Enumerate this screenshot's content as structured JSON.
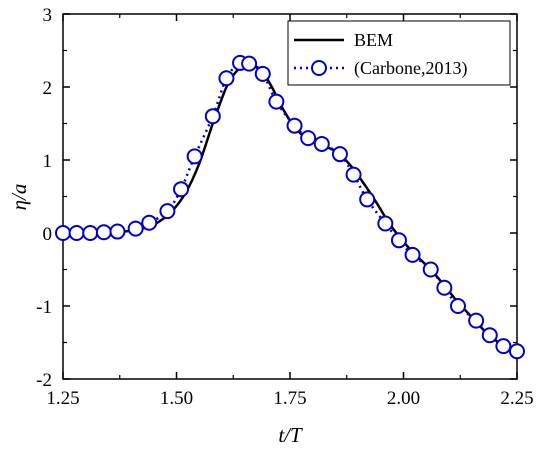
{
  "chart_data": {
    "type": "line",
    "xlabel": "t/T",
    "ylabel": "η/a",
    "xlim": [
      1.25,
      2.25
    ],
    "ylim": [
      -2,
      3
    ],
    "x_ticks": [
      "1.25",
      "1.50",
      "1.75",
      "2.00",
      "2.25"
    ],
    "y_ticks": [
      "-2",
      "-1",
      "0",
      "1",
      "2",
      "3"
    ],
    "grid": false,
    "legend_position": "top-right",
    "colors": {
      "bem": "#000000",
      "carbone": "#0000cc"
    },
    "series": [
      {
        "name": "BEM",
        "style": "solid-line",
        "x": [
          1.25,
          1.3,
          1.35,
          1.4,
          1.43,
          1.46,
          1.49,
          1.52,
          1.55,
          1.58,
          1.61,
          1.63,
          1.65,
          1.67,
          1.69,
          1.71,
          1.73,
          1.76,
          1.79,
          1.82,
          1.85,
          1.88,
          1.91,
          1.94,
          1.97,
          2.0,
          2.03,
          2.06,
          2.09,
          2.12,
          2.15,
          2.18,
          2.21,
          2.25
        ],
        "y": [
          0.0,
          0.0,
          0.01,
          0.03,
          0.07,
          0.15,
          0.3,
          0.55,
          0.95,
          1.5,
          2.0,
          2.2,
          2.3,
          2.3,
          2.2,
          2.0,
          1.75,
          1.45,
          1.28,
          1.2,
          1.12,
          0.95,
          0.7,
          0.42,
          0.12,
          -0.12,
          -0.32,
          -0.5,
          -0.72,
          -0.95,
          -1.15,
          -1.35,
          -1.5,
          -1.6
        ]
      },
      {
        "name": "(Carbone,2013)",
        "style": "dotted-line-circle-markers",
        "x": [
          1.25,
          1.28,
          1.31,
          1.34,
          1.37,
          1.41,
          1.44,
          1.48,
          1.51,
          1.54,
          1.58,
          1.61,
          1.64,
          1.66,
          1.69,
          1.72,
          1.76,
          1.79,
          1.82,
          1.86,
          1.89,
          1.92,
          1.96,
          1.99,
          2.02,
          2.06,
          2.09,
          2.12,
          2.16,
          2.19,
          2.22,
          2.25
        ],
        "y": [
          0.0,
          0.0,
          0.0,
          0.01,
          0.02,
          0.06,
          0.14,
          0.3,
          0.6,
          1.05,
          1.6,
          2.12,
          2.33,
          2.32,
          2.18,
          1.8,
          1.47,
          1.3,
          1.22,
          1.08,
          0.8,
          0.46,
          0.13,
          -0.1,
          -0.3,
          -0.5,
          -0.75,
          -1.0,
          -1.2,
          -1.4,
          -1.55,
          -1.62
        ]
      }
    ]
  }
}
